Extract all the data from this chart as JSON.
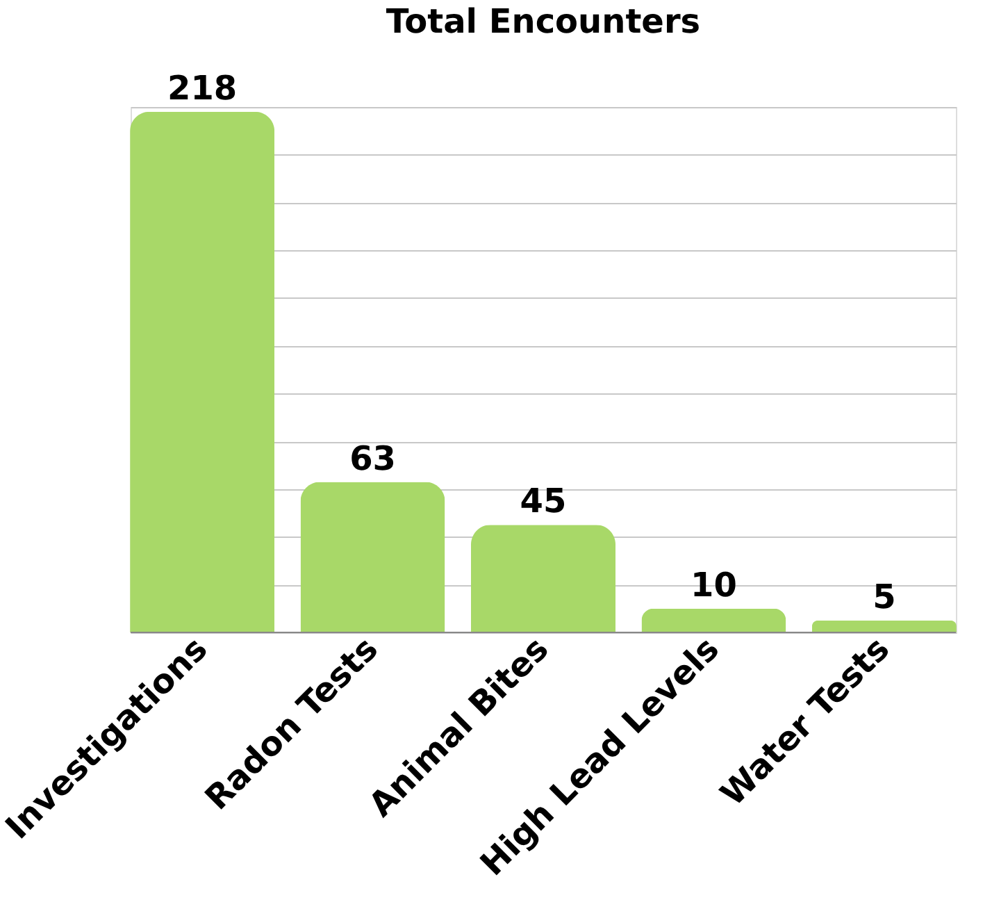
{
  "chart_data": {
    "type": "bar",
    "title": "Total Encounters",
    "categories": [
      "Investigations",
      "Radon Tests",
      "Animal Bites",
      "High Lead Levels",
      "Water Tests"
    ],
    "values": [
      218,
      63,
      45,
      10,
      5
    ],
    "color": "#a8d868",
    "ylim": [
      0,
      220
    ],
    "yticks": [
      {
        "value": 0,
        "label": null
      },
      {
        "value": 20,
        "label": null
      },
      {
        "value": 40,
        "label": null
      },
      {
        "value": 60,
        "label": null
      },
      {
        "value": 80,
        "label": null
      },
      {
        "value": 100,
        "label": null
      },
      {
        "value": 120,
        "label": null
      },
      {
        "value": 140,
        "label": null
      },
      {
        "value": 160,
        "label": null
      },
      {
        "value": 180,
        "label": null
      },
      {
        "value": 200,
        "label": null
      },
      {
        "value": 220,
        "label": null
      }
    ],
    "grid": "y",
    "data_labels": true,
    "tick_labels": "x"
  }
}
